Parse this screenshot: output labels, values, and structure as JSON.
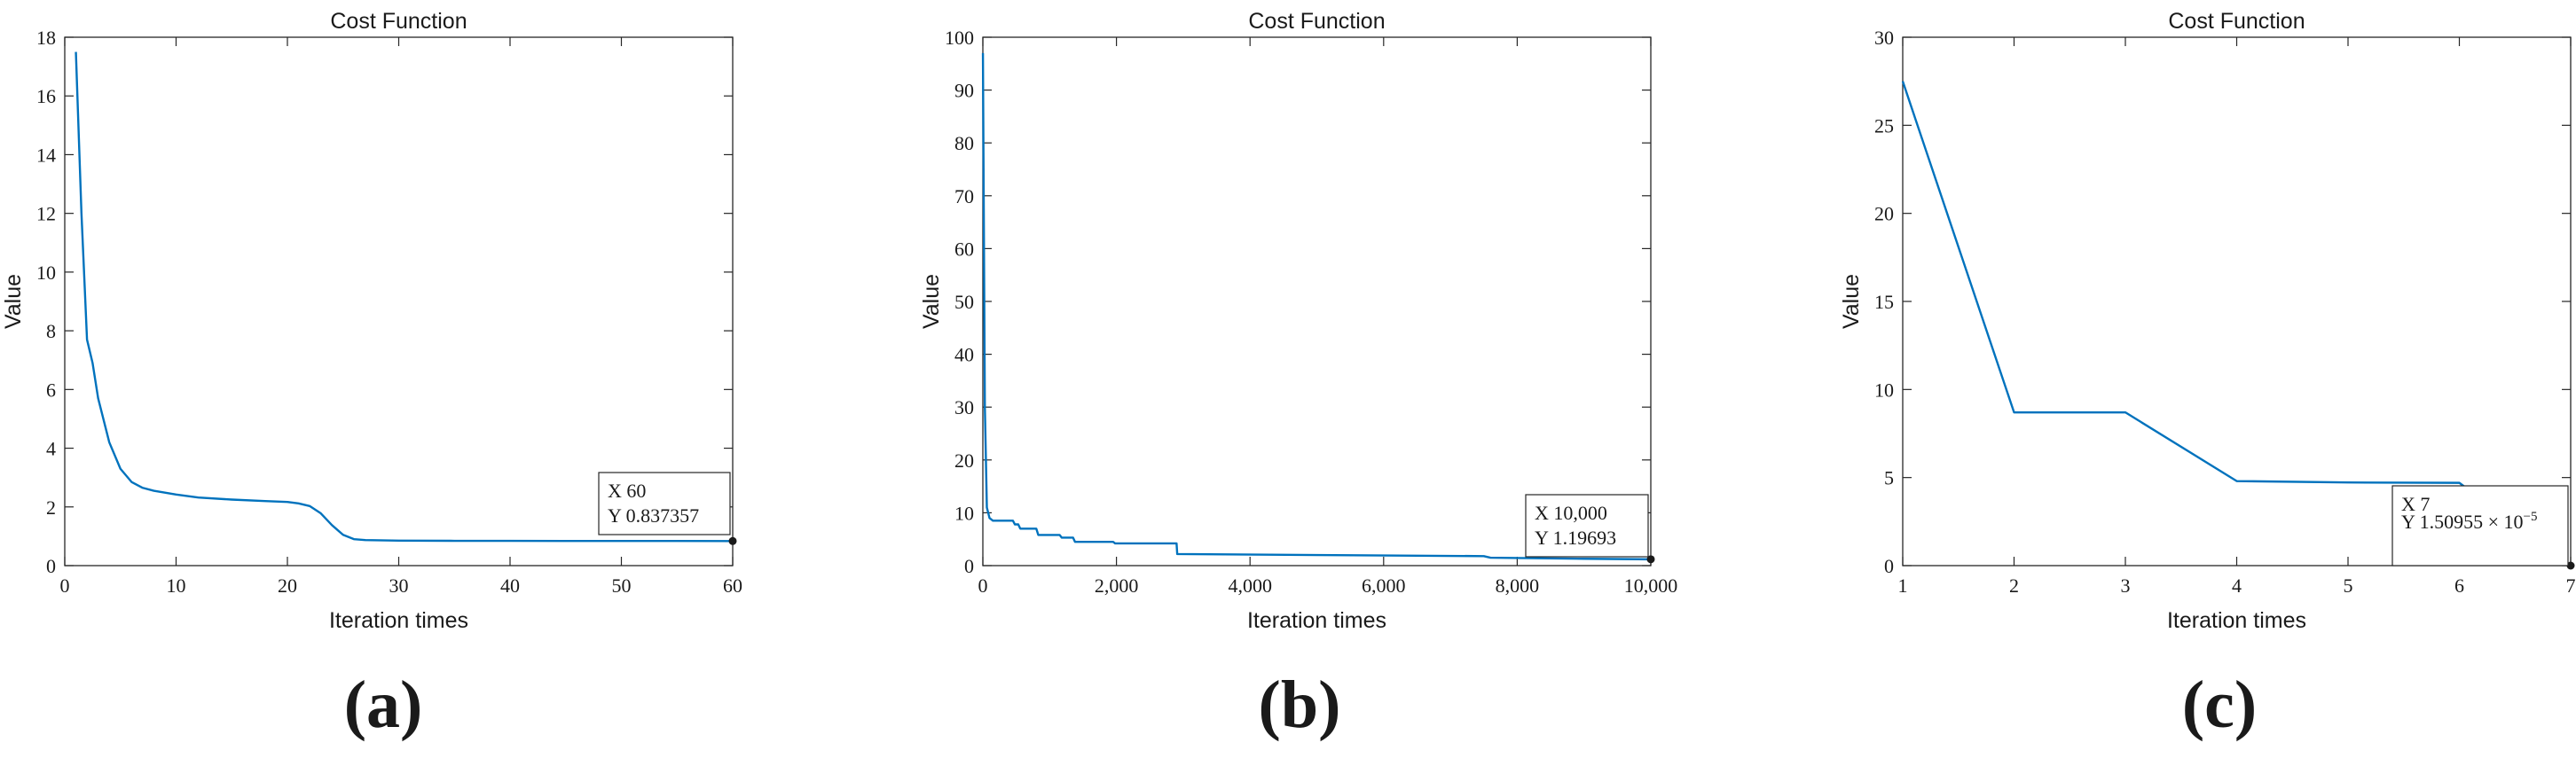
{
  "chart_data": [
    {
      "type": "line",
      "panel_label": "(a)",
      "title": "Cost Function",
      "xlabel": "Iteration times",
      "ylabel": "Value",
      "xlim": [
        0,
        60
      ],
      "ylim": [
        0,
        18
      ],
      "xticks": [
        0,
        10,
        20,
        30,
        40,
        50,
        60
      ],
      "xtick_labels": [
        "0",
        "10",
        "20",
        "30",
        "40",
        "50",
        "60"
      ],
      "yticks": [
        0,
        2,
        4,
        6,
        8,
        10,
        12,
        14,
        16,
        18
      ],
      "ytick_labels": [
        "0",
        "2",
        "4",
        "6",
        "8",
        "10",
        "12",
        "14",
        "16",
        "18"
      ],
      "color": "#0072BD",
      "series": [
        {
          "name": "Cost Function",
          "x": [
            1,
            1.5,
            2,
            2.5,
            3,
            4,
            5,
            6,
            7,
            8,
            10,
            12,
            15,
            18,
            20,
            21,
            22,
            23,
            24,
            25,
            26,
            27,
            30,
            35,
            40,
            45,
            50,
            55,
            60
          ],
          "y": [
            17.5,
            12.0,
            7.7,
            6.9,
            5.7,
            4.2,
            3.3,
            2.85,
            2.65,
            2.55,
            2.42,
            2.32,
            2.25,
            2.2,
            2.17,
            2.12,
            2.03,
            1.78,
            1.38,
            1.05,
            0.9,
            0.87,
            0.85,
            0.845,
            0.843,
            0.841,
            0.84,
            0.839,
            0.837357
          ]
        }
      ],
      "datatip": {
        "x_text": "X 60",
        "y_text": "Y 0.837357",
        "x": 60,
        "y": 0.837357
      }
    },
    {
      "type": "line",
      "panel_label": "(b)",
      "title": "Cost Function",
      "xlabel": "Iteration times",
      "ylabel": "Value",
      "xlim": [
        0,
        10000
      ],
      "ylim": [
        0,
        100
      ],
      "xticks": [
        0,
        2000,
        4000,
        6000,
        8000,
        10000
      ],
      "xtick_labels": [
        "0",
        "2,000",
        "4,000",
        "6,000",
        "8,000",
        "10,000"
      ],
      "yticks": [
        0,
        10,
        20,
        30,
        40,
        50,
        60,
        70,
        80,
        90,
        100
      ],
      "ytick_labels": [
        "0",
        "10",
        "20",
        "30",
        "40",
        "50",
        "60",
        "70",
        "80",
        "90",
        "100"
      ],
      "color": "#0072BD",
      "series": [
        {
          "name": "Cost Function",
          "x": [
            1,
            30,
            60,
            100,
            150,
            450,
            480,
            530,
            560,
            800,
            830,
            1150,
            1180,
            1350,
            1380,
            1950,
            1980,
            2900,
            2910,
            5000,
            7500,
            7600,
            9000,
            10000
          ],
          "y": [
            97,
            30,
            11,
            9,
            8.5,
            8.5,
            7.8,
            7.8,
            7,
            7,
            5.8,
            5.8,
            5.3,
            5.3,
            4.5,
            4.5,
            4.2,
            4.2,
            2.2,
            2.0,
            1.8,
            1.5,
            1.3,
            1.19693
          ]
        }
      ],
      "datatip": {
        "x_text": "X 10,000",
        "y_text": "Y 1.19693",
        "x": 10000,
        "y": 1.19693
      }
    },
    {
      "type": "line",
      "panel_label": "(c)",
      "title": "Cost Function",
      "xlabel": "Iteration times",
      "ylabel": "Value",
      "xlim": [
        1,
        7
      ],
      "ylim": [
        0,
        30
      ],
      "xticks": [
        1,
        2,
        3,
        4,
        5,
        6,
        7
      ],
      "xtick_labels": [
        "1",
        "2",
        "3",
        "4",
        "5",
        "6",
        "7"
      ],
      "yticks": [
        0,
        5,
        10,
        15,
        20,
        25,
        30
      ],
      "ytick_labels": [
        "0",
        "5",
        "10",
        "15",
        "20",
        "25",
        "30"
      ],
      "color": "#0072BD",
      "series": [
        {
          "name": "Cost Function",
          "x": [
            1,
            2,
            3,
            4,
            5,
            6,
            7
          ],
          "y": [
            27.5,
            8.7,
            8.7,
            4.8,
            4.72,
            4.7,
            1.50955e-05
          ]
        }
      ],
      "datatip": {
        "x_text": "X 7",
        "y_text": "Y 1.50955 × 10",
        "y_exp": "−5",
        "x": 7,
        "y": 1.50955e-05
      }
    }
  ]
}
